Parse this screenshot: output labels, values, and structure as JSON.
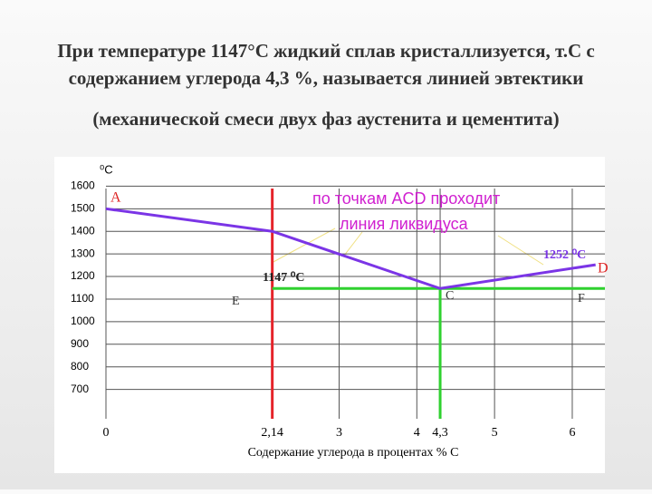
{
  "slide": {
    "heading": [
      "При температуре 1147°С жидкий сплав  кристаллизуется,   т.С с",
      "содержанием углерода 4,3 %, называется  линией эвтектики"
    ],
    "subheading": "(механической смеси двух фаз аустенита и цементита)"
  },
  "chart_data": {
    "type": "line",
    "ylabel": "⁰C",
    "xlabel": "Содержание углерода  в процентах    % С",
    "xlim": [
      0,
      6.42
    ],
    "ylim": [
      570,
      1710
    ],
    "xticks": [
      0,
      {
        "value": 2.14,
        "label": "2,14"
      },
      3,
      4,
      {
        "value": 4.3,
        "label": "4,3"
      },
      5,
      6
    ],
    "yticks": [
      1600,
      1500,
      1400,
      1300,
      1200,
      1100,
      1000,
      900,
      800,
      700
    ],
    "grid": true,
    "series": [
      {
        "color": "#7b35e6",
        "x": [
          0,
          2.14,
          4.3,
          6.3
        ],
        "values": [
          1500,
          1400,
          1147,
          1252
        ]
      },
      {
        "color": "#2fd12f",
        "x": [
          2.14,
          4.3,
          6.42
        ],
        "values": [
          1147,
          1147,
          1147
        ]
      }
    ],
    "vlines": [
      {
        "x": 2.14,
        "color": "#e5242a"
      },
      {
        "x": 4.3,
        "color": "#2fd12f"
      }
    ],
    "annotations": [
      "A",
      "D",
      "E",
      "C",
      "F",
      "1147 ⁰C",
      "1252 ⁰C",
      "по  точкам ACD  проходит",
      "линия  ликвидуса"
    ]
  }
}
